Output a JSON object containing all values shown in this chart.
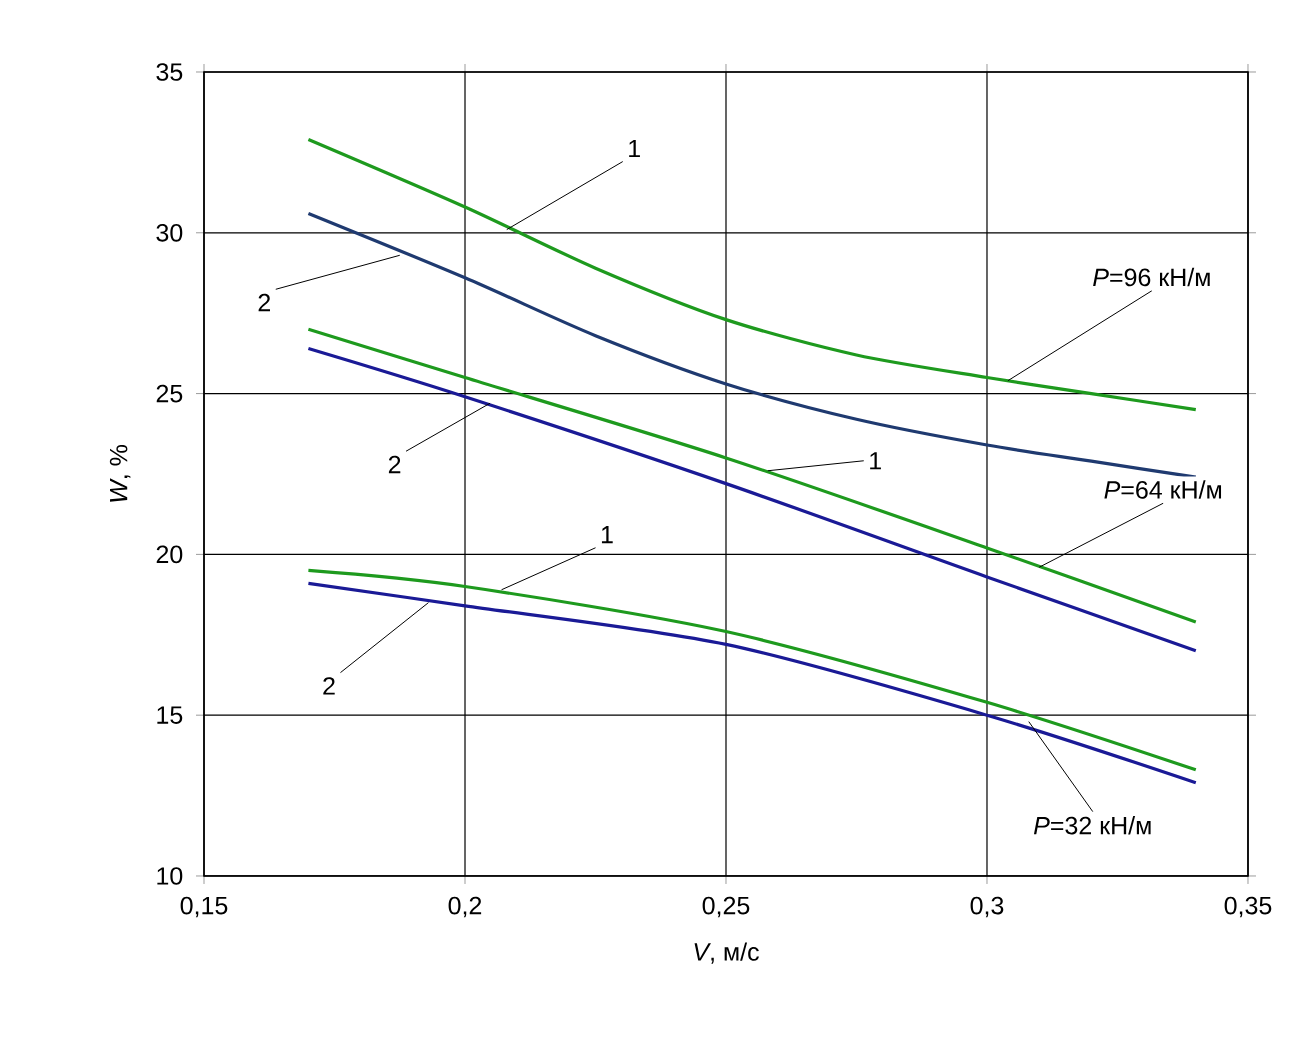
{
  "chart_data": {
    "type": "line",
    "xlabel": "*V*, м/с",
    "ylabel": "*W*, %",
    "xlim": [
      0.15,
      0.35
    ],
    "ylim": [
      10,
      35
    ],
    "xticks": [
      {
        "value": 0.15,
        "label": "0,15"
      },
      {
        "value": 0.2,
        "label": "0,2"
      },
      {
        "value": 0.25,
        "label": "0,25"
      },
      {
        "value": 0.3,
        "label": "0,3"
      },
      {
        "value": 0.35,
        "label": "0,35"
      }
    ],
    "yticks": [
      10,
      15,
      20,
      25,
      30,
      35
    ],
    "grid": true,
    "legend": false,
    "marker": "none",
    "line_style": "solid",
    "series": [
      {
        "color": "#1e9a1e",
        "x": [
          0.17,
          0.2,
          0.225,
          0.25,
          0.275,
          0.3,
          0.32,
          0.34
        ],
        "values": [
          32.9,
          30.8,
          28.9,
          27.3,
          26.2,
          25.5,
          25.0,
          24.5
        ]
      },
      {
        "color": "#1f3a70",
        "x": [
          0.17,
          0.2,
          0.225,
          0.25,
          0.275,
          0.3,
          0.32,
          0.34
        ],
        "values": [
          30.6,
          28.6,
          26.8,
          25.3,
          24.2,
          23.4,
          22.9,
          22.4
        ]
      },
      {
        "color": "#1e9a1e",
        "x": [
          0.17,
          0.2,
          0.25,
          0.3,
          0.34
        ],
        "values": [
          27.0,
          25.5,
          23.0,
          20.2,
          17.9
        ]
      },
      {
        "color": "#1a1a96",
        "x": [
          0.17,
          0.2,
          0.25,
          0.3,
          0.34
        ],
        "values": [
          26.4,
          24.9,
          22.2,
          19.3,
          17.0
        ]
      },
      {
        "color": "#1e9a1e",
        "x": [
          0.17,
          0.2,
          0.25,
          0.3,
          0.34
        ],
        "values": [
          19.5,
          19.0,
          17.6,
          15.4,
          13.3
        ]
      },
      {
        "color": "#1a1a96",
        "x": [
          0.17,
          0.2,
          0.25,
          0.3,
          0.34
        ],
        "values": [
          19.1,
          18.4,
          17.2,
          15.0,
          12.9
        ]
      }
    ],
    "annotations": [
      {
        "text": "1",
        "x": 0.208,
        "y": 30.1
      },
      {
        "text": "2",
        "x": 0.1875,
        "y": 29.3
      },
      {
        "text": "2",
        "x": 0.2048,
        "y": 24.7
      },
      {
        "text": "1",
        "x": 0.258,
        "y": 22.6
      },
      {
        "text": "1",
        "x": 0.207,
        "y": 18.9
      },
      {
        "text": "2",
        "x": 0.193,
        "y": 18.5
      },
      {
        "text": "*P*=96 кН/м",
        "x": 0.304,
        "y": 25.4
      },
      {
        "text": "*P*=64 кН/м",
        "x": 0.31,
        "y": 19.6
      },
      {
        "text": "*P*=32 кН/м",
        "x": 0.308,
        "y": 14.8
      }
    ]
  }
}
